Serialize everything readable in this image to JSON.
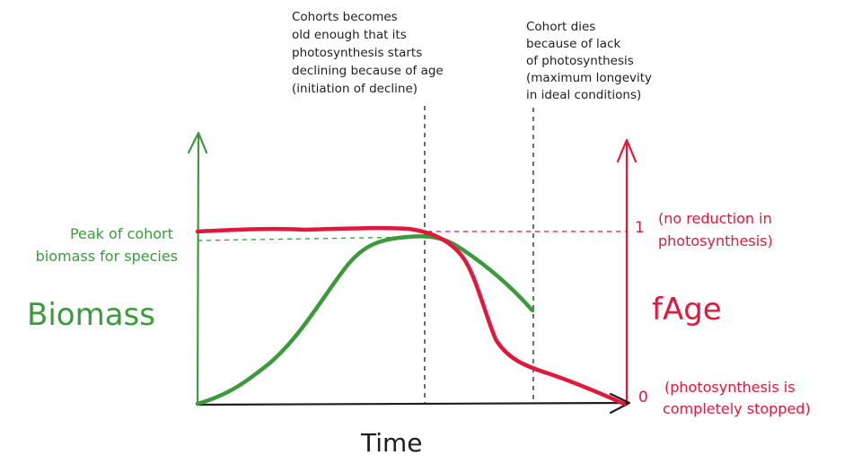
{
  "colors": {
    "ink": "#1e1e1e",
    "biomass": "#3c9a3c",
    "fage": "#e0183c"
  },
  "annotations": {
    "decline": [
      "Cohorts becomes",
      "old enough that its",
      "photosynthesis starts",
      "declining because of age",
      "(initiation of decline)"
    ],
    "death": [
      "Cohort dies",
      "because of lack",
      "of photosynthesis",
      "(maximum longevity",
      "in ideal conditions)"
    ]
  },
  "left_axis": {
    "label": "Biomass",
    "peak_label": [
      "Peak of cohort",
      "biomass for species"
    ]
  },
  "right_axis": {
    "label": "fAge",
    "tick_1": "1",
    "tick_1_note": [
      "(no reduction in",
      "photosynthesis)"
    ],
    "tick_0": "0",
    "tick_0_note": [
      "(photosynthesis is",
      "completely stopped)"
    ]
  },
  "x_axis": {
    "label": "Time"
  }
}
